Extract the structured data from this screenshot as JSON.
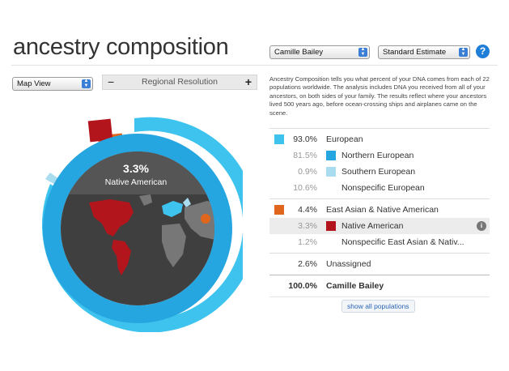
{
  "header": {
    "title": "ancestry composition",
    "profile_select": "Camille Bailey",
    "estimate_select": "Standard Estimate",
    "help": "?"
  },
  "controls": {
    "view_select": "Map View",
    "resolution_label": "Regional Resolution",
    "minus": "−",
    "plus": "+"
  },
  "description": "Ancestry Composition tells you what percent of your DNA comes from each of 22 populations worldwide. The analysis includes DNA you received from all of your ancestors, on both sides of your family. The results reflect where your ancestors lived 500 years ago, before ocean-crossing ships and airplanes came on the scene.",
  "donut": {
    "percent": "3.3%",
    "label": "Native American"
  },
  "colors": {
    "european": "#3dc3ee",
    "northern_european": "#26a6e0",
    "southern_european": "#a9dcee",
    "east_asian_native_american": "#e0651d",
    "native_american": "#b3151d"
  },
  "breakdown": {
    "european": {
      "pct": "93.0%",
      "name": "European"
    },
    "northern": {
      "pct": "81.5%",
      "name": "Northern European"
    },
    "southern": {
      "pct": "0.9%",
      "name": "Southern European"
    },
    "nonspecific_eu": {
      "pct": "10.6%",
      "name": "Nonspecific European"
    },
    "east_asian": {
      "pct": "4.4%",
      "name": "East Asian & Native American"
    },
    "native": {
      "pct": "3.3%",
      "name": "Native American"
    },
    "nonspecific_ea": {
      "pct": "1.2%",
      "name": "Nonspecific East Asian & Nativ..."
    },
    "unassigned": {
      "pct": "2.6%",
      "name": "Unassigned"
    },
    "total": {
      "pct": "100.0%",
      "name": "Camille Bailey"
    }
  },
  "show_all": "show all populations"
}
